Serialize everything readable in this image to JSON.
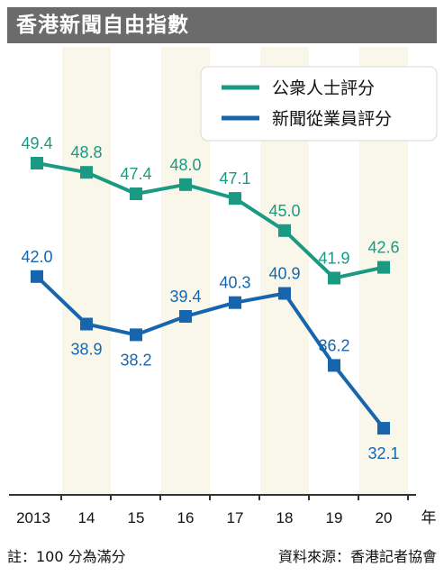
{
  "title": "香港新聞自由指數",
  "footer": {
    "note": "註：100 分為滿分",
    "source": "資料來源：香港記者協會"
  },
  "colors": {
    "public": "#1a9a82",
    "journalists": "#1766ad",
    "band": "#f8f7ea",
    "axis": "#333333"
  },
  "chart_data": {
    "type": "line",
    "categories": [
      "2013",
      "14",
      "15",
      "16",
      "17",
      "18",
      "19",
      "20"
    ],
    "x_unit": "年",
    "series": [
      {
        "name": "公衆人士評分",
        "values": [
          49.4,
          48.8,
          47.4,
          48.0,
          47.1,
          45.0,
          41.9,
          42.6
        ]
      },
      {
        "name": "新聞從業員評分",
        "values": [
          42.0,
          38.9,
          38.2,
          39.4,
          40.3,
          40.9,
          36.2,
          32.1
        ]
      }
    ],
    "legend_position": "top-right",
    "grid": false
  }
}
